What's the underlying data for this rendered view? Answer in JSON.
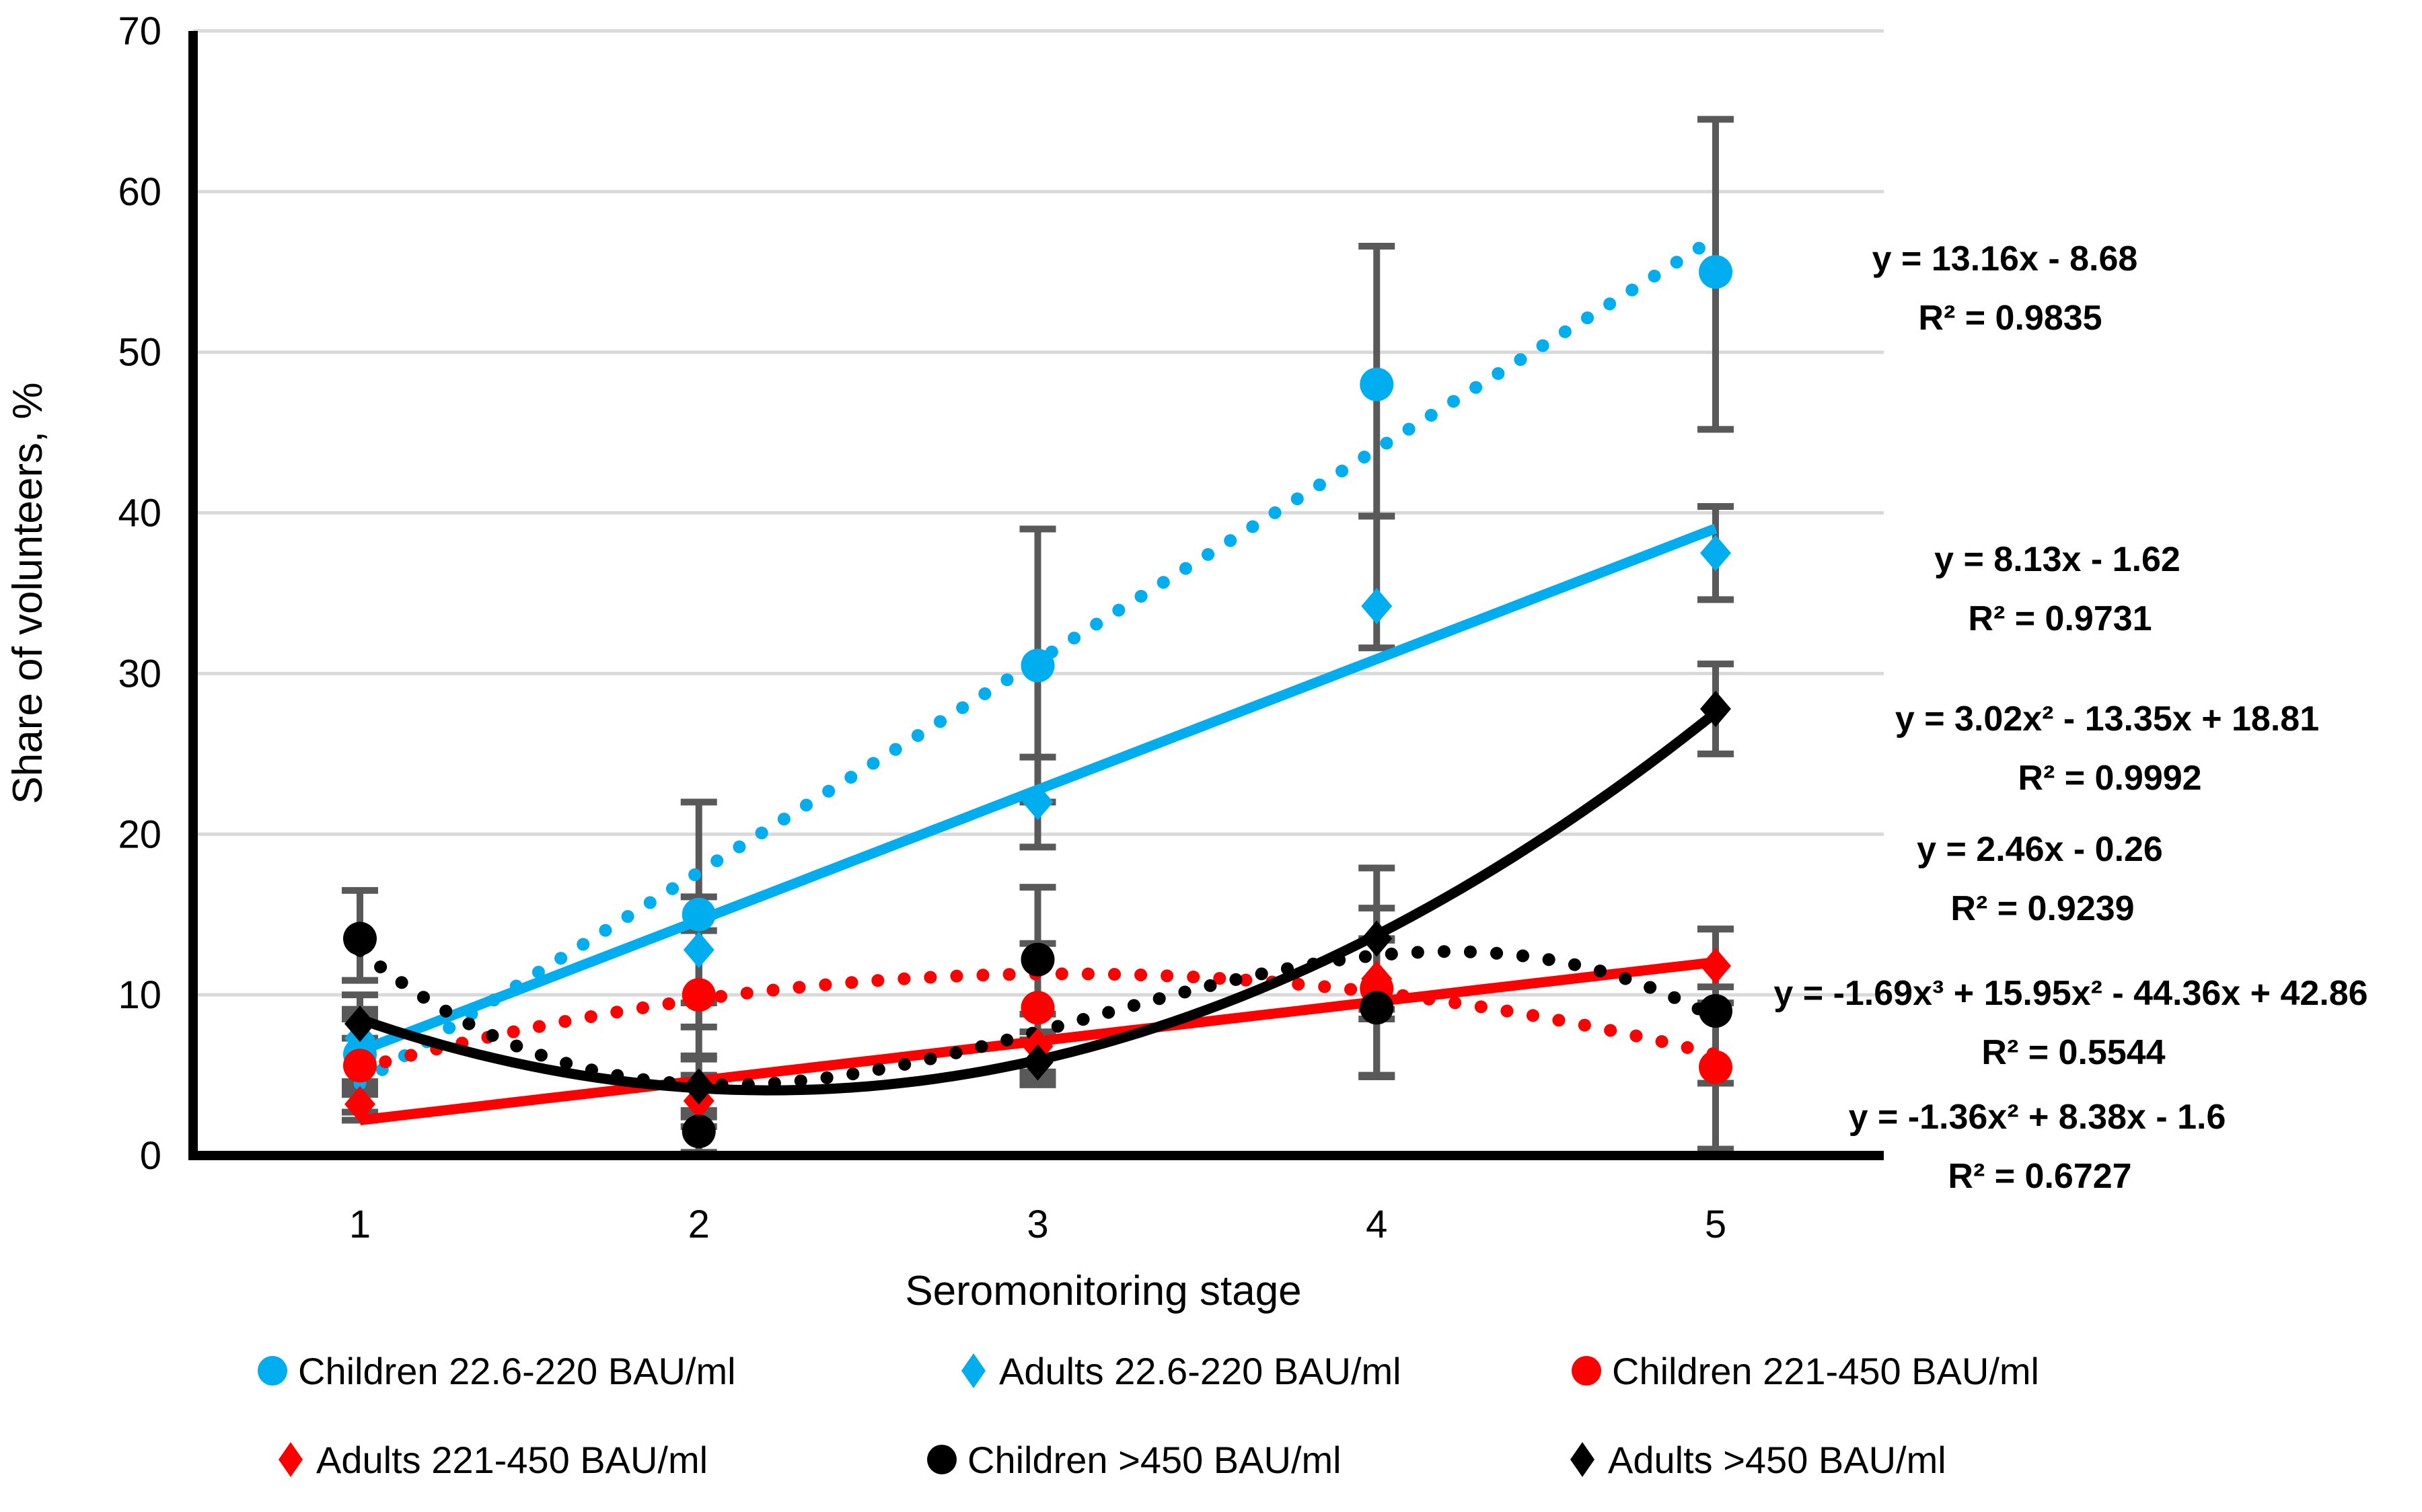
{
  "chart_data": {
    "type": "scatter",
    "title": "",
    "xlabel": "Seromonitoring stage",
    "ylabel": "Share of volunteers, %",
    "x": [
      1,
      2,
      3,
      4,
      5
    ],
    "xlim": [
      0.5,
      5.5
    ],
    "ylim": [
      0,
      70
    ],
    "ytick_step": 10,
    "yticks": [
      0,
      10,
      20,
      30,
      40,
      50,
      60,
      70
    ],
    "xticks": [
      1,
      2,
      3,
      4,
      5
    ],
    "grid": "horizontal-only",
    "legend_position": "bottom-two-rows",
    "colors": {
      "blue": "#00AEEF",
      "red": "#FF0000",
      "black": "#000000",
      "gridline": "#D9D9D9",
      "error_bar": "#595959",
      "axis": "#000000"
    },
    "series": [
      {
        "name": "Children 22.6-220  BAU/ml",
        "color": "#00AEEF",
        "marker": "circle",
        "trend_style": "dotted",
        "values": [
          6.3,
          15,
          30.5,
          48,
          55
        ],
        "err_plus": [
          2.5,
          7,
          8.5,
          8.6,
          9.5
        ],
        "err_minus": [
          2.5,
          7,
          8.5,
          8.2,
          9.8
        ],
        "trend": {
          "type": "linear",
          "coeffs": [
            -8.68,
            13.16
          ],
          "equation": "y = 13.16x - 8.68",
          "r2": "R² = 0.9835"
        }
      },
      {
        "name": "Adults 22.6-220  BAU/ml",
        "color": "#00AEEF",
        "marker": "diamond",
        "trend_style": "solid",
        "values": [
          7.3,
          12.8,
          22,
          34.2,
          37.5
        ],
        "err_plus": [
          2.7,
          3.3,
          2.8,
          5.6,
          2.9
        ],
        "err_minus": [
          2.7,
          3.3,
          2.8,
          2.6,
          2.9
        ],
        "trend": {
          "type": "linear",
          "coeffs": [
            -1.62,
            8.13
          ],
          "equation": "y = 8.13x - 1.62",
          "r2": "R² = 0.9731"
        }
      },
      {
        "name": "Children 221-450 BAU/ml",
        "color": "#FF0000",
        "marker": "circle",
        "trend_style": "dotted",
        "values": [
          5.6,
          10,
          9.2,
          10.4,
          5.5
        ],
        "err_plus": [
          2.9,
          4,
          4,
          5,
          5
        ],
        "err_minus": [
          2.9,
          4,
          4,
          5.5,
          5.1
        ],
        "trend": {
          "type": "quadratic",
          "coeffs": [
            -1.6,
            8.38,
            -1.36
          ],
          "equation": "y = -1.36x² + 8.38x - 1.6",
          "r2": "R² = 0.6727"
        }
      },
      {
        "name": "Adults 221-450 BAU/ml",
        "color": "#FF0000",
        "marker": "diamond",
        "trend_style": "solid",
        "values": [
          3.2,
          3.4,
          6.8,
          11,
          11.8
        ],
        "err_plus": [
          1.0,
          1.6,
          2.0,
          2.5,
          2.3
        ],
        "err_minus": [
          1.0,
          1.6,
          2.0,
          2.5,
          2.3
        ],
        "trend": {
          "type": "linear",
          "coeffs": [
            -0.26,
            2.46
          ],
          "equation": "y = 2.46x - 0.26",
          "r2": "R² = 0.9239"
        }
      },
      {
        "name": "Children >450  BAU/ml",
        "color": "#000000",
        "marker": "circle",
        "trend_style": "dotted",
        "values": [
          13.5,
          1.5,
          12.2,
          9.2,
          9
        ],
        "err_plus": [
          3.0,
          1.3,
          4.5,
          4.2,
          5.1
        ],
        "err_minus": [
          2.6,
          1.3,
          4.5,
          4.2,
          4.5
        ],
        "trend": {
          "type": "cubic",
          "coeffs": [
            42.86,
            -44.36,
            15.95,
            -1.69
          ],
          "equation": "y = -1.69x³ + 15.95x² - 44.36x + 42.86",
          "r2": "R² = 0.5544"
        }
      },
      {
        "name": "Adults >450  BAU/ml",
        "color": "#000000",
        "marker": "diamond",
        "trend_style": "solid",
        "values": [
          8.2,
          4.3,
          5.8,
          13.5,
          27.8
        ],
        "err_plus": [
          0.9,
          1.9,
          1.4,
          4.4,
          2.8
        ],
        "err_minus": [
          0.9,
          1.9,
          1.4,
          4.4,
          2.8
        ],
        "trend": {
          "type": "quadratic",
          "coeffs": [
            18.81,
            -13.35,
            3.02
          ],
          "equation": "y = 3.02x² - 13.35x + 18.81",
          "r2": "R² = 0.9992"
        }
      }
    ]
  }
}
